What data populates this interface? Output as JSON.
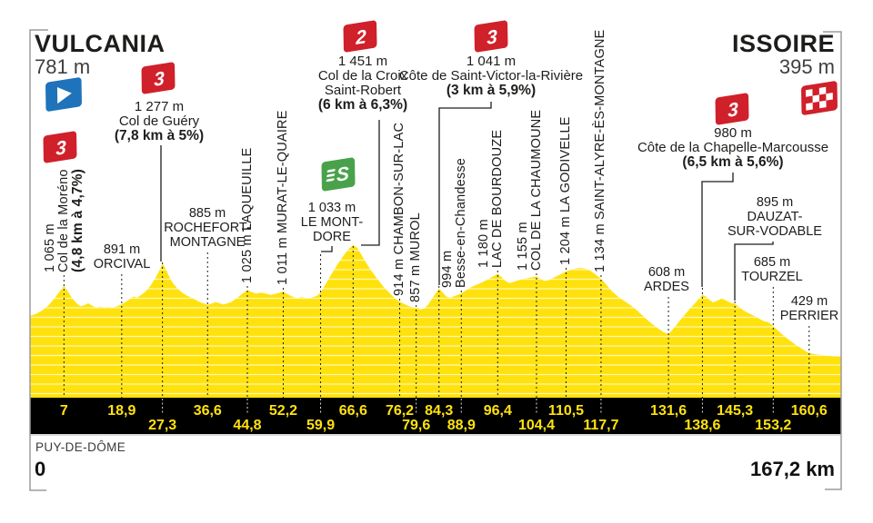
{
  "header": {
    "start_name": "VULCANIA",
    "start_elevation": "781 m",
    "finish_name": "ISSOIRE",
    "finish_elevation": "395 m"
  },
  "footer": {
    "department": "PUY-DE-DÔME",
    "start_km_label": "0",
    "total_distance_label": "167,2 km"
  },
  "icons": {
    "start_flag": "start-flag-icon",
    "finish_flag": "checkered-finish-flag-icon",
    "sprint_badge": "sprint-s-badge-icon",
    "category_badge": "climb-category-badge-icon"
  },
  "colors": {
    "profile_yellow": "#ffe20d",
    "axis_black": "#000000",
    "badge_red": "#d0202a",
    "sprint_green": "#49a24b",
    "flag_blue": "#1e73ba",
    "text_dark": "#1d1d1b",
    "frame_gray": "#9b9b9b",
    "stripe_white": "rgba(255,255,255,0.7)"
  },
  "chart_data": {
    "type": "area",
    "x_unit": "km",
    "y_unit": "m",
    "x_range": [
      0,
      167.2
    ],
    "start": {
      "name": "VULCANIA",
      "km": 0,
      "elevation_m": 781
    },
    "finish": {
      "name": "ISSOIRE",
      "km": 167.2,
      "elevation_m": 395
    },
    "axis_rows": {
      "row1": [
        "7",
        "18,9",
        "36,6",
        "52,2",
        "66,6",
        "76,2",
        "84,3",
        "96,4",
        "110,5",
        "131,6",
        "145,3",
        "160,6"
      ],
      "row2": [
        "27,3",
        "44,8",
        "59,9",
        "79,6",
        "88,9",
        "104,4",
        "117,7",
        "138,6",
        "153,2"
      ]
    },
    "waypoints": [
      {
        "km": 7,
        "axis_label": "7",
        "axis_row": 1,
        "elevation_m": 1065,
        "elevation_label": "1 065 m",
        "name": "Col de la Moréno",
        "label_lines": [
          "1 065 m",
          "Col de la Moréno"
        ],
        "gradient_label": "(4,8 km à 4,7%)",
        "category": "3",
        "orientation": "vertical"
      },
      {
        "km": 18.9,
        "axis_label": "18,9",
        "axis_row": 1,
        "elevation_m": 891,
        "elevation_label": "891 m",
        "name": "ORCIVAL",
        "label_lines": [
          "891 m",
          "ORCIVAL"
        ],
        "gradient_label": null,
        "category": null,
        "orientation": "horizontal"
      },
      {
        "km": 27.3,
        "axis_label": "27,3",
        "axis_row": 2,
        "elevation_m": 1277,
        "elevation_label": "1 277 m",
        "name": "Col de Guéry",
        "label_lines": [
          "1 277 m",
          "Col de Guéry"
        ],
        "gradient_label": "(7,8 km à 5%)",
        "category": "3",
        "orientation": "climb"
      },
      {
        "km": 36.6,
        "axis_label": "36,6",
        "axis_row": 1,
        "elevation_m": 885,
        "elevation_label": "885 m",
        "name": "ROCHEFORT-MONTAGNE",
        "label_lines": [
          "885 m",
          "ROCHEFORT-",
          "MONTAGNE"
        ],
        "gradient_label": null,
        "category": null,
        "orientation": "horizontal"
      },
      {
        "km": 44.8,
        "axis_label": "44,8",
        "axis_row": 2,
        "elevation_m": 1025,
        "elevation_label": "1 025 m",
        "name": "LAQUEUILLE",
        "label_lines": [
          "1 025 m LAQUEUILLE"
        ],
        "gradient_label": null,
        "category": null,
        "orientation": "vertical"
      },
      {
        "km": 52.2,
        "axis_label": "52,2",
        "axis_row": 1,
        "elevation_m": 1011,
        "elevation_label": "1 011 m",
        "name": "MURAT-LE-QUAIRE",
        "label_lines": [
          "1 011 m MURAT-LE-QUAIRE"
        ],
        "gradient_label": null,
        "category": null,
        "orientation": "vertical"
      },
      {
        "km": 59.9,
        "axis_label": "59,9",
        "axis_row": 2,
        "elevation_m": 1033,
        "elevation_label": "1 033 m",
        "name": "LE MONT-DORE",
        "label_lines": [
          "1 033 m",
          "LE MONT-",
          "DORE"
        ],
        "gradient_label": null,
        "category": null,
        "sprint": true,
        "orientation": "horizontal"
      },
      {
        "km": 66.6,
        "axis_label": "66,6",
        "axis_row": 1,
        "elevation_m": 1451,
        "elevation_label": "1 451 m",
        "name": "Col de la Croix Saint-Robert",
        "label_lines": [
          "1 451 m",
          "Col de la Croix",
          "Saint-Robert"
        ],
        "gradient_label": "(6 km à 6,3%)",
        "category": "2",
        "orientation": "climb"
      },
      {
        "km": 76.2,
        "axis_label": "76,2",
        "axis_row": 1,
        "elevation_m": 914,
        "elevation_label": "914 m",
        "name": "CHAMBON-SUR-LAC",
        "label_lines": [
          "914 m CHAMBON-SUR-LAC"
        ],
        "gradient_label": null,
        "category": null,
        "orientation": "vertical"
      },
      {
        "km": 79.6,
        "axis_label": "79,6",
        "axis_row": 2,
        "elevation_m": 857,
        "elevation_label": "857 m",
        "name": "MUROL",
        "label_lines": [
          "857 m MUROL"
        ],
        "gradient_label": null,
        "category": null,
        "orientation": "vertical"
      },
      {
        "km": 84.3,
        "axis_label": "84,3",
        "axis_row": 1,
        "elevation_m": 1041,
        "elevation_label": "1 041 m",
        "name": "Côte de Saint-Victor-la-Rivière",
        "label_lines": [
          "1 041 m",
          "Côte de Saint-Victor-la-Rivière"
        ],
        "gradient_label": "(3 km à 5,9%)",
        "category": "3",
        "orientation": "climb"
      },
      {
        "km": 88.9,
        "axis_label": "88,9",
        "axis_row": 2,
        "elevation_m": 994,
        "elevation_label": "994 m",
        "name": "Besse-en-Chandesse",
        "label_lines": [
          "994 m",
          "Besse-en-Chandesse"
        ],
        "gradient_label": null,
        "category": null,
        "orientation": "vertical"
      },
      {
        "km": 96.4,
        "axis_label": "96,4",
        "axis_row": 1,
        "elevation_m": 1180,
        "elevation_label": "1 180 m",
        "name": "LAC DE BOURDOUZE",
        "label_lines": [
          "1 180 m",
          "LAC DE BOURDOUZE"
        ],
        "gradient_label": null,
        "category": null,
        "orientation": "vertical"
      },
      {
        "km": 104.4,
        "axis_label": "104,4",
        "axis_row": 2,
        "elevation_m": 1155,
        "elevation_label": "1 155 m",
        "name": "COL DE LA CHAUMOUNE",
        "label_lines": [
          "1 155 m",
          "COL DE LA CHAUMOUNE"
        ],
        "gradient_label": null,
        "category": null,
        "orientation": "vertical"
      },
      {
        "km": 110.5,
        "axis_label": "110,5",
        "axis_row": 1,
        "elevation_m": 1204,
        "elevation_label": "1 204 m",
        "name": "LA GODIVELLE",
        "label_lines": [
          "1 204 m LA GODIVELLE"
        ],
        "gradient_label": null,
        "category": null,
        "orientation": "vertical"
      },
      {
        "km": 117.7,
        "axis_label": "117,7",
        "axis_row": 2,
        "elevation_m": 1134,
        "elevation_label": "1 134 m",
        "name": "SAINT-ALYRE-ÈS-MONTAGNE",
        "label_lines": [
          "1 134 m SAINT-ALYRE-ÈS-MONTAGNE"
        ],
        "gradient_label": null,
        "category": null,
        "orientation": "vertical"
      },
      {
        "km": 131.6,
        "axis_label": "131,6",
        "axis_row": 1,
        "elevation_m": 608,
        "elevation_label": "608 m",
        "name": "ARDES",
        "label_lines": [
          "608 m",
          "ARDES"
        ],
        "gradient_label": null,
        "category": null,
        "orientation": "horizontal"
      },
      {
        "km": 138.6,
        "axis_label": "138,6",
        "axis_row": 2,
        "elevation_m": 980,
        "elevation_label": "980 m",
        "name": "Côte de la Chapelle-Marcousse",
        "label_lines": [
          "980 m",
          "Côte de la Chapelle-Marcousse"
        ],
        "gradient_label": "(6,5 km à 5,6%)",
        "category": "3",
        "orientation": "climb"
      },
      {
        "km": 145.3,
        "axis_label": "145,3",
        "axis_row": 1,
        "elevation_m": 895,
        "elevation_label": "895 m",
        "name": "DAUZAT-SUR-VODABLE",
        "label_lines": [
          "895 m",
          "DAUZAT-",
          "SUR-VODABLE"
        ],
        "gradient_label": null,
        "category": null,
        "orientation": "horizontal"
      },
      {
        "km": 153.2,
        "axis_label": "153,2",
        "axis_row": 2,
        "elevation_m": 685,
        "elevation_label": "685 m",
        "name": "TOURZEL",
        "label_lines": [
          "685 m",
          "TOURZEL"
        ],
        "gradient_label": null,
        "category": null,
        "orientation": "horizontal"
      },
      {
        "km": 160.6,
        "axis_label": "160,6",
        "axis_row": 1,
        "elevation_m": 429,
        "elevation_label": "429 m",
        "name": "PERRIER",
        "label_lines": [
          "429 m",
          "PERRIER"
        ],
        "gradient_label": null,
        "category": null,
        "orientation": "horizontal"
      }
    ],
    "profile_points": [
      [
        0,
        781
      ],
      [
        1.2,
        800
      ],
      [
        2.5,
        832
      ],
      [
        3.8,
        880
      ],
      [
        5,
        945
      ],
      [
        6,
        1005
      ],
      [
        7,
        1065
      ],
      [
        7.7,
        1020
      ],
      [
        8.6,
        955
      ],
      [
        9.6,
        900
      ],
      [
        10.4,
        872
      ],
      [
        11.2,
        882
      ],
      [
        12,
        900
      ],
      [
        12.8,
        878
      ],
      [
        13.6,
        858
      ],
      [
        14.6,
        868
      ],
      [
        15.4,
        858
      ],
      [
        16.2,
        866
      ],
      [
        17,
        858
      ],
      [
        18,
        872
      ],
      [
        18.9,
        891
      ],
      [
        19.8,
        915
      ],
      [
        20.6,
        942
      ],
      [
        21.4,
        965
      ],
      [
        22,
        952
      ],
      [
        22.8,
        975
      ],
      [
        23.8,
        1010
      ],
      [
        24.8,
        1065
      ],
      [
        25.8,
        1135
      ],
      [
        26.6,
        1205
      ],
      [
        27.3,
        1277
      ],
      [
        27.9,
        1235
      ],
      [
        28.6,
        1160
      ],
      [
        29.4,
        1095
      ],
      [
        30.4,
        1040
      ],
      [
        31.4,
        1000
      ],
      [
        32.4,
        972
      ],
      [
        33.6,
        945
      ],
      [
        34.8,
        915
      ],
      [
        36.6,
        885
      ],
      [
        37.4,
        896
      ],
      [
        38.2,
        912
      ],
      [
        39,
        902
      ],
      [
        39.8,
        888
      ],
      [
        40.6,
        898
      ],
      [
        41.6,
        915
      ],
      [
        42.6,
        948
      ],
      [
        43.7,
        988
      ],
      [
        44.8,
        1025
      ],
      [
        45.6,
        1008
      ],
      [
        46.6,
        992
      ],
      [
        47.6,
        1002
      ],
      [
        48.6,
        992
      ],
      [
        49.6,
        980
      ],
      [
        50.6,
        990
      ],
      [
        51.4,
        1000
      ],
      [
        52.2,
        1011
      ],
      [
        53,
        988
      ],
      [
        54,
        965
      ],
      [
        55,
        948
      ],
      [
        56,
        960
      ],
      [
        57,
        944
      ],
      [
        58,
        954
      ],
      [
        59,
        968
      ],
      [
        59.9,
        1000
      ],
      [
        61,
        1085
      ],
      [
        62.2,
        1180
      ],
      [
        63.4,
        1270
      ],
      [
        64.6,
        1350
      ],
      [
        65.6,
        1410
      ],
      [
        66.6,
        1451
      ],
      [
        67.4,
        1428
      ],
      [
        68.2,
        1370
      ],
      [
        69.2,
        1290
      ],
      [
        70.4,
        1205
      ],
      [
        71.6,
        1130
      ],
      [
        73,
        1050
      ],
      [
        74.4,
        985
      ],
      [
        75.3,
        945
      ],
      [
        76.2,
        914
      ],
      [
        77.2,
        892
      ],
      [
        78.4,
        868
      ],
      [
        79.6,
        857
      ],
      [
        80.4,
        844
      ],
      [
        81.2,
        848
      ],
      [
        82,
        885
      ],
      [
        83.2,
        965
      ],
      [
        84.3,
        1041
      ],
      [
        85,
        1005
      ],
      [
        85.8,
        965
      ],
      [
        86.6,
        952
      ],
      [
        87.6,
        970
      ],
      [
        88.9,
        994
      ],
      [
        89.8,
        1020
      ],
      [
        91,
        1055
      ],
      [
        92.4,
        1082
      ],
      [
        93.6,
        1108
      ],
      [
        94.8,
        1138
      ],
      [
        95.6,
        1158
      ],
      [
        96.4,
        1180
      ],
      [
        97.2,
        1148
      ],
      [
        98,
        1112
      ],
      [
        98.8,
        1092
      ],
      [
        99.6,
        1102
      ],
      [
        100.6,
        1118
      ],
      [
        101.8,
        1132
      ],
      [
        103,
        1142
      ],
      [
        104.4,
        1155
      ],
      [
        105.2,
        1132
      ],
      [
        106,
        1112
      ],
      [
        106.8,
        1118
      ],
      [
        107.6,
        1135
      ],
      [
        108.6,
        1158
      ],
      [
        109.6,
        1180
      ],
      [
        110.5,
        1204
      ],
      [
        111.4,
        1215
      ],
      [
        112.4,
        1228
      ],
      [
        113.4,
        1235
      ],
      [
        114.4,
        1228
      ],
      [
        115.4,
        1212
      ],
      [
        116.4,
        1178
      ],
      [
        117.7,
        1134
      ],
      [
        118.8,
        1075
      ],
      [
        120,
        1012
      ],
      [
        121.2,
        962
      ],
      [
        122.4,
        925
      ],
      [
        123.6,
        888
      ],
      [
        124.8,
        845
      ],
      [
        126,
        795
      ],
      [
        127.2,
        745
      ],
      [
        128.4,
        698
      ],
      [
        129.6,
        658
      ],
      [
        130.6,
        628
      ],
      [
        131.6,
        608
      ],
      [
        132.4,
        648
      ],
      [
        133.4,
        705
      ],
      [
        134.4,
        762
      ],
      [
        135.4,
        815
      ],
      [
        136.4,
        868
      ],
      [
        137.4,
        918
      ],
      [
        138.6,
        980
      ],
      [
        139.4,
        962
      ],
      [
        140,
        935
      ],
      [
        140.8,
        908
      ],
      [
        141.8,
        928
      ],
      [
        142.6,
        945
      ],
      [
        143.4,
        928
      ],
      [
        144.4,
        905
      ],
      [
        145.3,
        895
      ],
      [
        146.2,
        862
      ],
      [
        147.2,
        828
      ],
      [
        148.2,
        805
      ],
      [
        149.2,
        782
      ],
      [
        150.2,
        758
      ],
      [
        151.2,
        732
      ],
      [
        152.2,
        720
      ],
      [
        152.8,
        700
      ],
      [
        153.2,
        685
      ],
      [
        154.2,
        640
      ],
      [
        155.4,
        592
      ],
      [
        156.6,
        548
      ],
      [
        157.8,
        508
      ],
      [
        159,
        472
      ],
      [
        160,
        444
      ],
      [
        160.6,
        429
      ],
      [
        161.6,
        420
      ],
      [
        162.8,
        412
      ],
      [
        164,
        405
      ],
      [
        165.2,
        400
      ],
      [
        166.2,
        397
      ],
      [
        167.2,
        395
      ]
    ]
  }
}
